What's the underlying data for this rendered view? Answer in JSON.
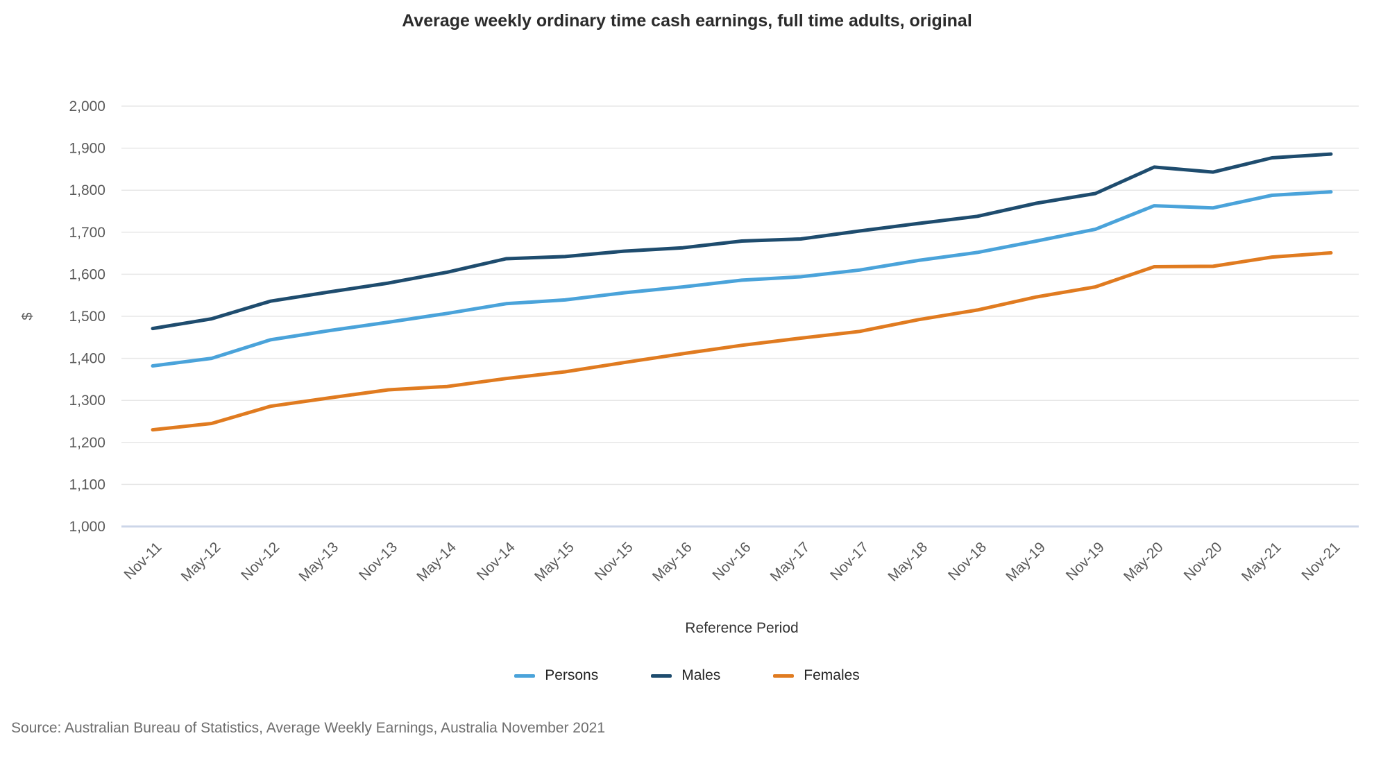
{
  "chart_data": {
    "type": "line",
    "title": "Average weekly ordinary time cash earnings, full time adults, original",
    "xlabel": "Reference Period",
    "ylabel": "$",
    "ylim": [
      1000,
      2000
    ],
    "ytick_step": 100,
    "grid": "horizontal",
    "legend_position": "bottom",
    "categories": [
      "Nov-11",
      "May-12",
      "Nov-12",
      "May-13",
      "Nov-13",
      "May-14",
      "Nov-14",
      "May-15",
      "Nov-15",
      "May-16",
      "Nov-16",
      "May-17",
      "Nov-17",
      "May-18",
      "Nov-18",
      "May-19",
      "Nov-19",
      "May-20",
      "Nov-20",
      "May-21",
      "Nov-21"
    ],
    "series": [
      {
        "name": "Persons",
        "color": "#4AA3DA",
        "values": [
          1382,
          1400,
          1444,
          1466,
          1486,
          1507,
          1530,
          1539,
          1556,
          1570,
          1586,
          1594,
          1610,
          1633,
          1652,
          1679,
          1707,
          1763,
          1758,
          1788,
          1796
        ]
      },
      {
        "name": "Males",
        "color": "#1E4C6E",
        "values": [
          1471,
          1494,
          1536,
          1558,
          1579,
          1605,
          1637,
          1642,
          1655,
          1663,
          1679,
          1684,
          1703,
          1721,
          1738,
          1769,
          1792,
          1855,
          1843,
          1877,
          1886
        ]
      },
      {
        "name": "Females",
        "color": "#E07B20",
        "values": [
          1230,
          1245,
          1286,
          1306,
          1325,
          1333,
          1352,
          1368,
          1390,
          1411,
          1431,
          1448,
          1464,
          1492,
          1515,
          1546,
          1570,
          1618,
          1619,
          1641,
          1651
        ]
      }
    ]
  },
  "source_note": "Source: Australian Bureau of Statistics, Average Weekly Earnings, Australia November 2021",
  "colors": {
    "gridline": "#E7E7E7",
    "baseline": "#CCD6E8",
    "tick_label": "#595959",
    "axis_title": "#333333",
    "title_text": "#2B2B2B",
    "source_text": "#6E6E6E"
  }
}
